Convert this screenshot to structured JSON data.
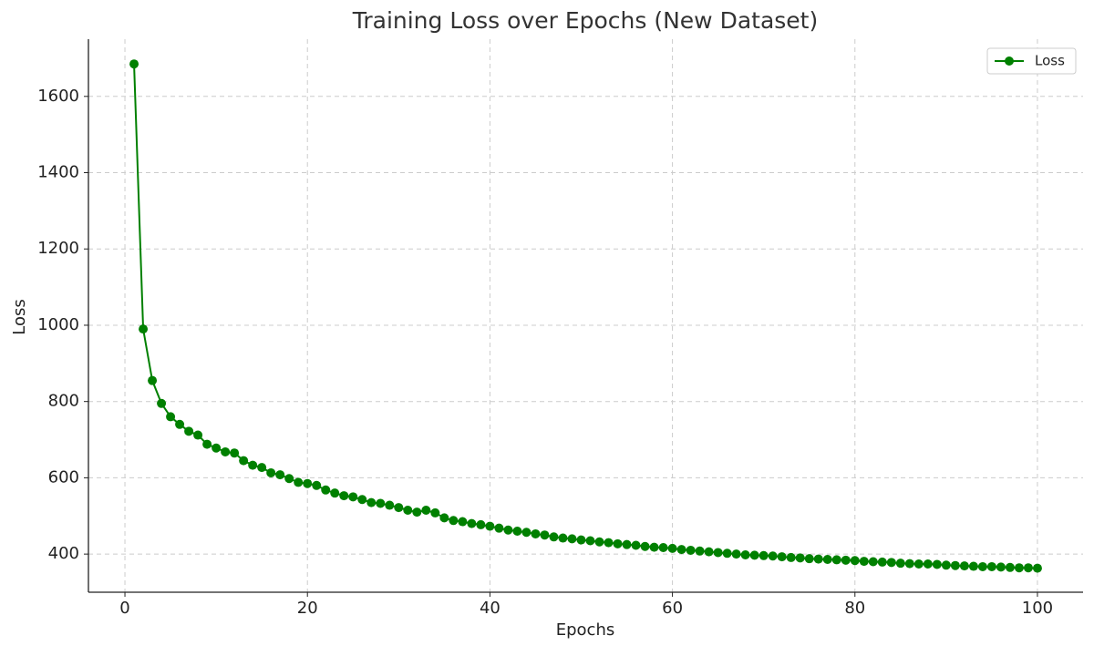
{
  "chart_data": {
    "type": "line",
    "title": "Training Loss over Epochs (New Dataset)",
    "x_label": "Epochs",
    "y_label": "Loss",
    "x": [
      1,
      2,
      3,
      4,
      5,
      6,
      7,
      8,
      9,
      10,
      11,
      12,
      13,
      14,
      15,
      16,
      17,
      18,
      19,
      20,
      21,
      22,
      23,
      24,
      25,
      26,
      27,
      28,
      29,
      30,
      31,
      32,
      33,
      34,
      35,
      36,
      37,
      38,
      39,
      40,
      41,
      42,
      43,
      44,
      45,
      46,
      47,
      48,
      49,
      50,
      51,
      52,
      53,
      54,
      55,
      56,
      57,
      58,
      59,
      60,
      61,
      62,
      63,
      64,
      65,
      66,
      67,
      68,
      69,
      70,
      71,
      72,
      73,
      74,
      75,
      76,
      77,
      78,
      79,
      80,
      81,
      82,
      83,
      84,
      85,
      86,
      87,
      88,
      89,
      90,
      91,
      92,
      93,
      94,
      95,
      96,
      97,
      98,
      99,
      100
    ],
    "series": [
      {
        "name": "Loss",
        "color": "#008000",
        "values": [
          1685,
          990,
          855,
          795,
          760,
          740,
          722,
          712,
          688,
          678,
          668,
          665,
          645,
          633,
          627,
          613,
          608,
          598,
          588,
          585,
          580,
          568,
          560,
          553,
          550,
          543,
          535,
          533,
          528,
          522,
          515,
          510,
          515,
          508,
          495,
          488,
          485,
          480,
          477,
          473,
          468,
          463,
          460,
          457,
          453,
          450,
          445,
          442,
          440,
          437,
          435,
          432,
          430,
          427,
          425,
          423,
          420,
          418,
          417,
          415,
          412,
          410,
          408,
          406,
          404,
          402,
          400,
          398,
          397,
          396,
          395,
          393,
          391,
          390,
          388,
          387,
          386,
          385,
          384,
          383,
          381,
          380,
          379,
          378,
          376,
          375,
          374,
          374,
          373,
          371,
          370,
          369,
          368,
          367,
          367,
          366,
          365,
          364,
          364,
          363
        ]
      }
    ],
    "xlim": [
      -4,
      105
    ],
    "ylim": [
      300,
      1750
    ],
    "xticks": [
      0,
      20,
      40,
      60,
      80,
      100
    ],
    "yticks": [
      400,
      600,
      800,
      1000,
      1200,
      1400,
      1600
    ],
    "grid": true,
    "legend": "upper right"
  }
}
